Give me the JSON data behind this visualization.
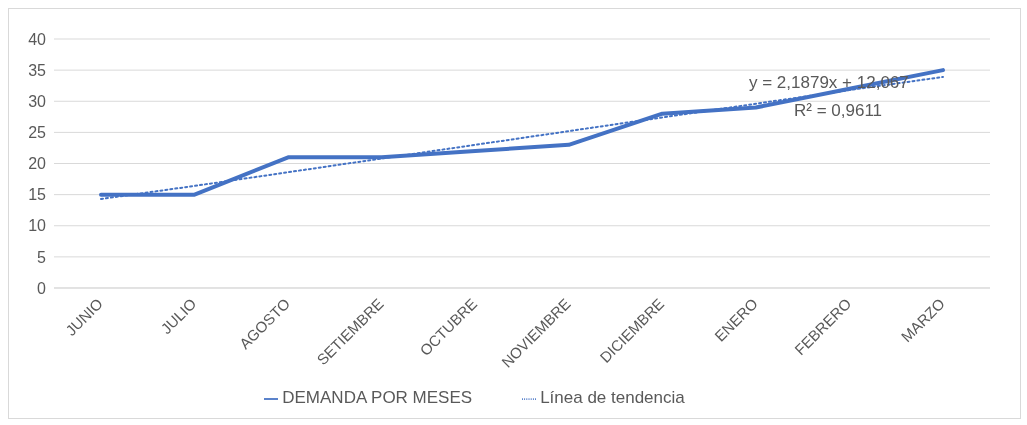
{
  "chart_data": {
    "type": "line",
    "categories": [
      "JUNIO",
      "JULIO",
      "AGOSTO",
      "SETIEMBRE",
      "OCTUBRE",
      "NOVIEMBRE",
      "DICIEMBRE",
      "ENERO",
      "FEBRERO",
      "MARZO"
    ],
    "series": [
      {
        "name": "DEMANDA POR MESES",
        "color": "#4472c4",
        "line_style": "solid",
        "values": [
          15,
          15,
          21,
          21,
          22,
          23,
          28,
          29,
          32,
          35
        ]
      },
      {
        "name": "Línea de tendencia",
        "color": "#4472c4",
        "line_style": "dotted",
        "values": [
          14.3,
          16.4,
          18.6,
          20.8,
          23.0,
          25.2,
          27.4,
          29.6,
          31.8,
          33.9
        ]
      }
    ],
    "ylim": [
      0,
      40
    ],
    "yticks": [
      0,
      5,
      10,
      15,
      20,
      25,
      30,
      35,
      40
    ],
    "grid": "y",
    "legend": "bottom",
    "marker": "none",
    "annotations": [
      "y = 2,1879x + 12,067",
      "R² = 0,9611"
    ]
  }
}
